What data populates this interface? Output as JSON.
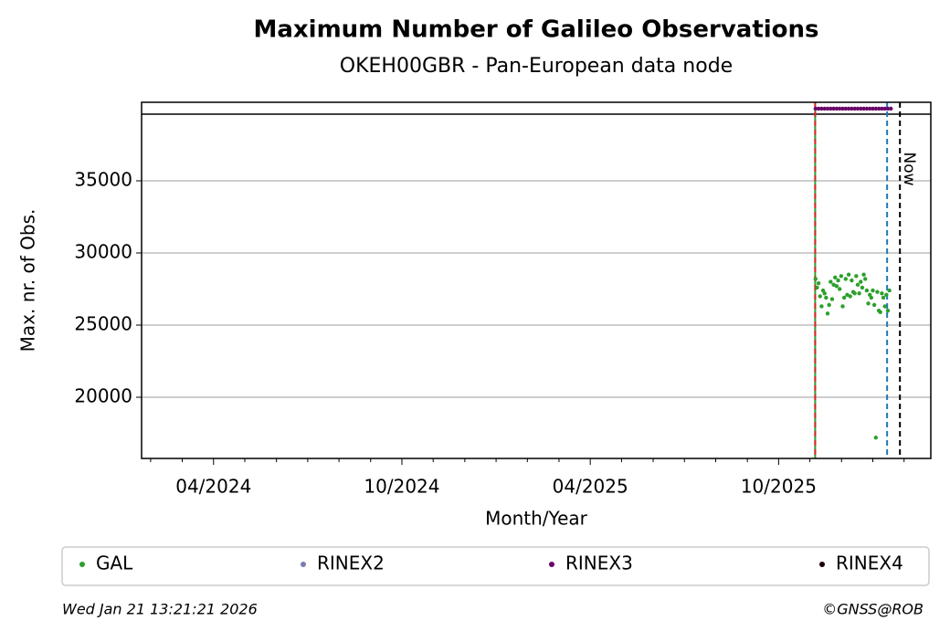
{
  "chart_data": {
    "type": "scatter",
    "title": "Maximum Number of Galileo Observations",
    "subtitle": "OKEH00GBR - Pan-European data node",
    "x_label": "Month/Year",
    "y_label": "Max. nr. of Obs.",
    "xlim": [
      2024.059,
      2026.154
    ],
    "ylim": [
      15760,
      40443
    ],
    "xticks": [
      {
        "value": 2024.25,
        "label": "04/2024"
      },
      {
        "value": 2024.75,
        "label": "10/2024"
      },
      {
        "value": 2025.25,
        "label": "04/2025"
      },
      {
        "value": 2025.75,
        "label": "10/2025"
      }
    ],
    "xminorticks": [
      2024.083,
      2024.167,
      2024.333,
      2024.417,
      2024.5,
      2024.583,
      2024.667,
      2024.833,
      2024.917,
      2025.0,
      2025.083,
      2025.167,
      2025.333,
      2025.417,
      2025.5,
      2025.583,
      2025.667,
      2025.833,
      2025.917,
      2026.0,
      2026.083
    ],
    "yticks": [
      20000,
      25000,
      30000,
      35000
    ],
    "grid": true,
    "hlines": [
      {
        "y": 39620,
        "color": "#000000"
      }
    ],
    "vlines": [
      {
        "x": 2025.847,
        "color": "#2ca02c",
        "style": "solid"
      },
      {
        "x": 2025.847,
        "color": "#d62728",
        "style": "dashed"
      },
      {
        "x": 2026.038,
        "color": "#1f77b4",
        "style": "dashed"
      },
      {
        "x": 2026.072,
        "color": "#000000",
        "style": "dashed",
        "label": "Now"
      }
    ],
    "legend": "bottom",
    "series": [
      {
        "name": "GAL",
        "color": "#2ca02c",
        "x": [
          2025.848,
          2025.852,
          2025.856,
          2025.86,
          2025.864,
          2025.868,
          2025.872,
          2025.876,
          2025.88,
          2025.884,
          2025.888,
          2025.892,
          2025.896,
          2025.9,
          2025.904,
          2025.908,
          2025.912,
          2025.916,
          2025.92,
          2025.924,
          2025.928,
          2025.932,
          2025.936,
          2025.94,
          2025.944,
          2025.948,
          2025.952,
          2025.956,
          2025.96,
          2025.964,
          2025.968,
          2025.972,
          2025.976,
          2025.98,
          2025.984,
          2025.988,
          2025.992,
          2025.996,
          2026.0,
          2026.004,
          2026.008,
          2026.012,
          2026.016,
          2026.02,
          2026.024,
          2026.028,
          2026.032,
          2026.036,
          2026.04,
          2026.044
        ],
        "values": [
          28200,
          27600,
          27900,
          27000,
          26300,
          27400,
          27200,
          26900,
          25800,
          26400,
          28000,
          26800,
          27800,
          28300,
          27700,
          28100,
          27500,
          28400,
          26300,
          26900,
          28200,
          27100,
          28500,
          27000,
          28100,
          27300,
          27200,
          28400,
          27800,
          27200,
          28000,
          27600,
          28500,
          28200,
          27400,
          26500,
          27100,
          26900,
          27400,
          26400,
          17200,
          27300,
          26000,
          25900,
          27200,
          26900,
          26300,
          27100,
          26000,
          27400
        ]
      },
      {
        "name": "RINEX2",
        "color": "#7b7bb3",
        "x": [],
        "values": []
      },
      {
        "name": "RINEX3",
        "color": "#6a006a",
        "x": [
          2025.848,
          2025.856,
          2025.864,
          2025.872,
          2025.88,
          2025.888,
          2025.896,
          2025.904,
          2025.912,
          2025.92,
          2025.928,
          2025.936,
          2025.944,
          2025.952,
          2025.96,
          2025.968,
          2025.976,
          2025.984,
          2025.992,
          2026.0,
          2026.008,
          2026.016,
          2026.024,
          2026.032,
          2026.04,
          2026.048
        ],
        "values": [
          40000,
          40000,
          40000,
          40000,
          40000,
          40000,
          40000,
          40000,
          40000,
          40000,
          40000,
          40000,
          40000,
          40000,
          40000,
          40000,
          40000,
          40000,
          40000,
          40000,
          40000,
          40000,
          40000,
          40000,
          40000,
          40000
        ]
      },
      {
        "name": "RINEX4",
        "color": "#1a0010",
        "x": [],
        "values": []
      }
    ],
    "footer_left": "Wed Jan 21 13:21:21 2026",
    "footer_right": "©GNSS@ROB"
  }
}
